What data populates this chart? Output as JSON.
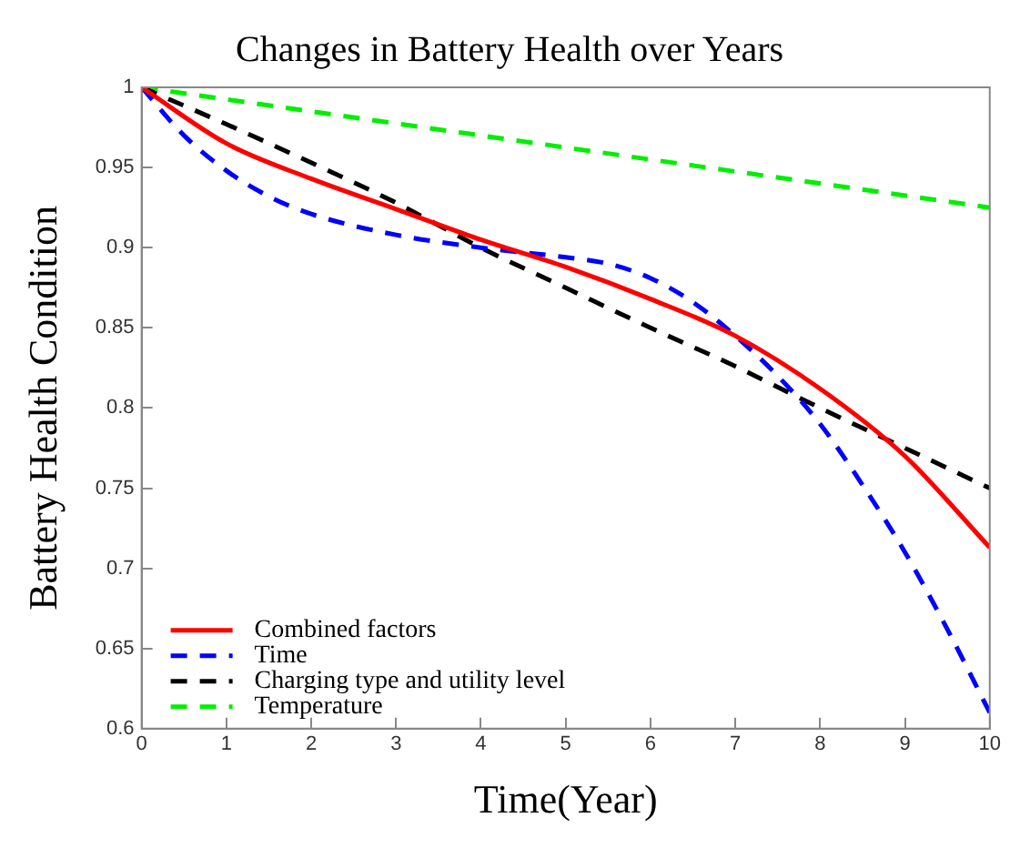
{
  "chart_data": {
    "type": "line",
    "title": "Changes in Battery Health over Years",
    "xlabel": "Time(Year)",
    "ylabel": "Battery Health Condition",
    "xlim": [
      0,
      10
    ],
    "xticks": [
      0,
      1,
      2,
      3,
      4,
      5,
      6,
      7,
      8,
      9,
      10
    ],
    "ylim": [
      0.6,
      1
    ],
    "yticks": [
      0.6,
      0.65,
      0.7,
      0.75,
      0.8,
      0.85,
      0.9,
      0.95,
      1
    ],
    "grid": false,
    "legend": "bottom left",
    "marker": "none",
    "series": [
      {
        "name": "Combined factors",
        "color": "#ff0000",
        "line_style": "solid",
        "x": [
          0,
          1,
          2,
          3,
          4,
          5,
          6,
          7,
          8,
          9,
          10
        ],
        "values": [
          1,
          0.965,
          0.943,
          0.924,
          0.905,
          0.888,
          0.868,
          0.845,
          0.812,
          0.77,
          0.713
        ]
      },
      {
        "name": "Time",
        "color": "#0000ff",
        "line_style": "dashed",
        "x": [
          0,
          0.5,
          1,
          1.5,
          2,
          3,
          4,
          5,
          5.5,
          6,
          6.5,
          7,
          7.5,
          8,
          8.5,
          9,
          9.5,
          10
        ],
        "values": [
          1,
          0.97,
          0.948,
          0.932,
          0.921,
          0.908,
          0.9,
          0.894,
          0.89,
          0.881,
          0.866,
          0.845,
          0.82,
          0.79,
          0.752,
          0.71,
          0.662,
          0.61
        ]
      },
      {
        "name": "Charging type and utility level",
        "color": "#000000",
        "line_style": "dashed",
        "x": [
          0,
          1,
          2,
          3,
          4,
          5,
          6,
          7,
          8,
          9,
          10
        ],
        "values": [
          1,
          0.977,
          0.953,
          0.928,
          0.9,
          0.875,
          0.85,
          0.826,
          0.8,
          0.775,
          0.75
        ]
      },
      {
        "name": "Temperature",
        "color": "#00ee00",
        "line_style": "dashed",
        "x": [
          0,
          10
        ],
        "values": [
          1,
          0.925
        ]
      }
    ]
  }
}
